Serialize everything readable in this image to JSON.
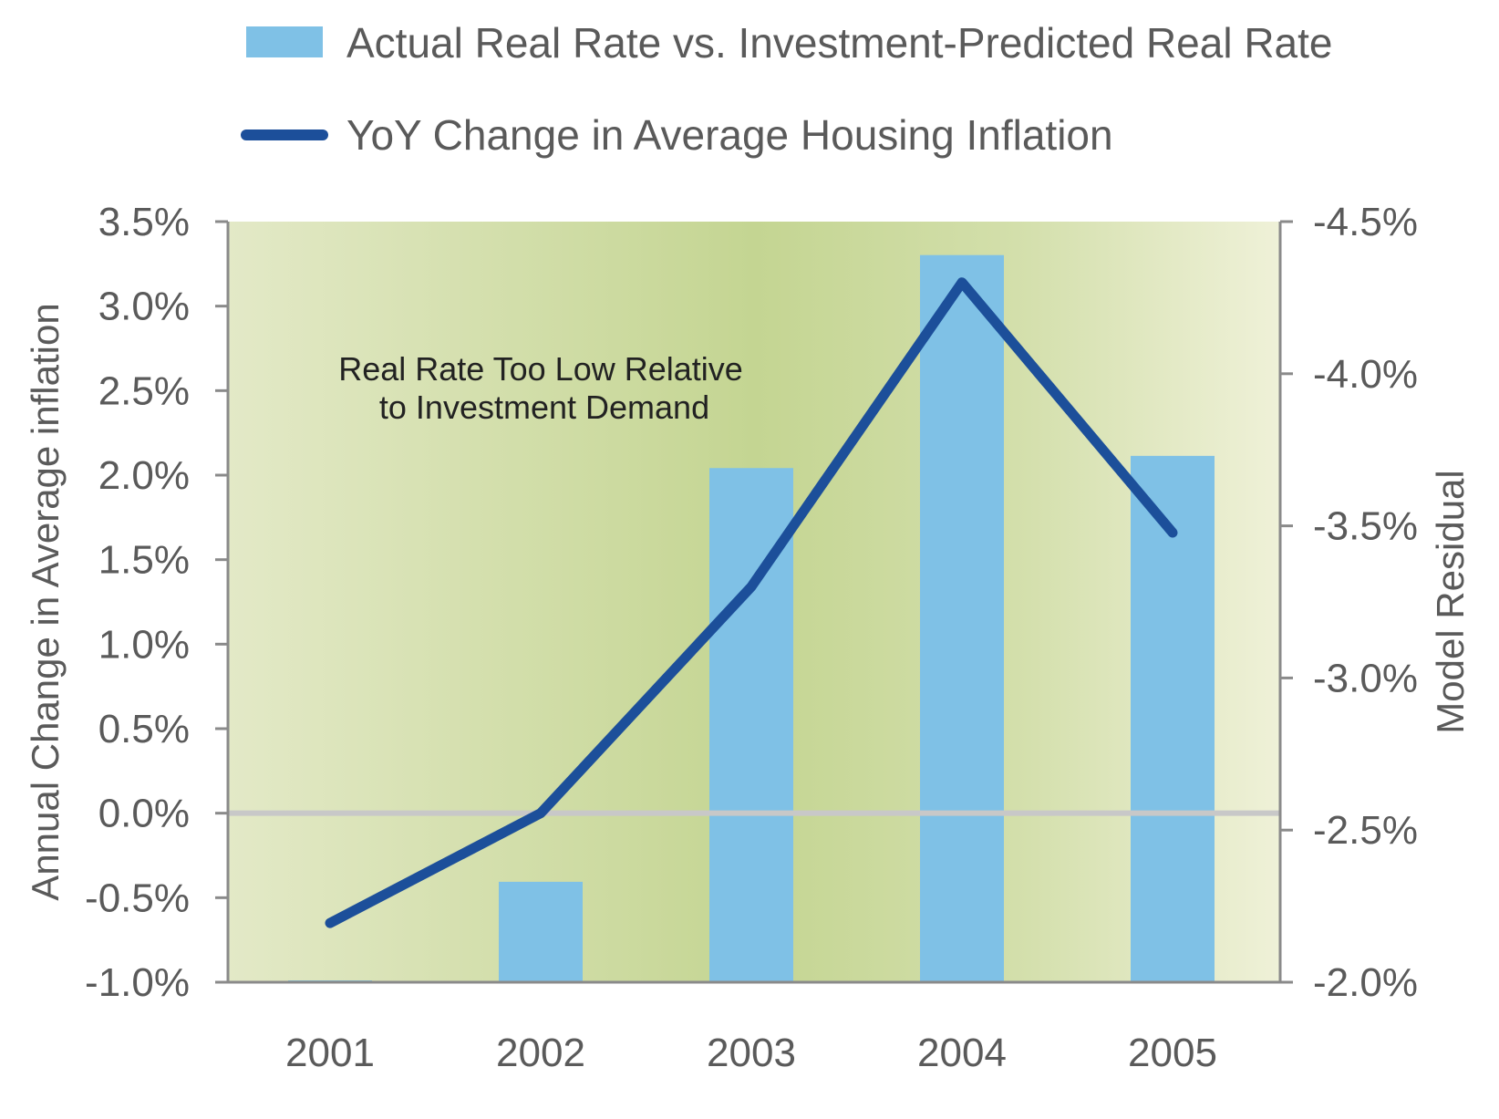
{
  "colors": {
    "bar": "#7fc1e6",
    "line": "#1c4f9a",
    "zero_line": "#c8c8c8",
    "axis": "#8a8a8a",
    "text": "#5a5a5a",
    "plot_bg_edge": "#e6ebcc",
    "plot_bg_center": "#c3d491",
    "plot_bg_right": "#eff1d8"
  },
  "chart_data": {
    "type": "bar",
    "categories": [
      "2001",
      "2002",
      "2003",
      "2004",
      "2005"
    ],
    "legend": {
      "position": "top",
      "entries": [
        {
          "label": "Actual Real Rate vs. Investment-Predicted Real Rate",
          "kind": "bar",
          "color": "#7fc1e6"
        },
        {
          "label": "YoY Change in Average Housing Inflation",
          "kind": "line",
          "color": "#1c4f9a"
        }
      ]
    },
    "series": [
      {
        "name": "Actual Real Rate vs. Investment-Predicted Real Rate",
        "type": "bar",
        "axis": "right",
        "values": [
          -2.0,
          -2.33,
          -3.69,
          -4.39,
          -3.73
        ]
      },
      {
        "name": "YoY Change in Average Housing Inflation",
        "type": "line",
        "axis": "left",
        "values": [
          -0.65,
          0.0,
          1.34,
          3.14,
          1.66
        ]
      }
    ],
    "left_axis": {
      "label": "Annual Change in Average inflation",
      "min": -1.0,
      "max": 3.5,
      "ticks": [
        "-1.0%",
        "-0.5%",
        "0.0%",
        "0.5%",
        "1.0%",
        "1.5%",
        "2.0%",
        "2.5%",
        "3.0%",
        "3.5%"
      ],
      "tick_values": [
        -1.0,
        -0.5,
        0.0,
        0.5,
        1.0,
        1.5,
        2.0,
        2.5,
        3.0,
        3.5
      ]
    },
    "right_axis": {
      "label": "Model Residual",
      "min": -2.0,
      "max": -4.5,
      "ticks": [
        "-2.0%",
        "-2.5%",
        "-3.0%",
        "-3.5%",
        "-4.0%",
        "-4.5%"
      ],
      "tick_values": [
        -2.0,
        -2.5,
        -3.0,
        -3.5,
        -4.0,
        -4.5
      ]
    },
    "annotation": {
      "lines": [
        "Real Rate Too Low Relative",
        "to Investment Demand"
      ]
    },
    "grid": false
  }
}
